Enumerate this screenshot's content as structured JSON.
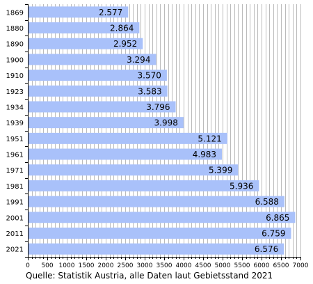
{
  "chart_data": {
    "type": "bar",
    "orientation": "horizontal",
    "categories": [
      "1869",
      "1880",
      "1890",
      "1900",
      "1910",
      "1923",
      "1934",
      "1939",
      "1951",
      "1961",
      "1971",
      "1981",
      "1991",
      "2001",
      "2011",
      "2021"
    ],
    "values": [
      2577,
      2864,
      2952,
      3294,
      3570,
      3583,
      3796,
      3998,
      5121,
      4983,
      5399,
      5936,
      6588,
      6865,
      6759,
      6576
    ],
    "value_labels": [
      "2.577",
      "2.864",
      "2.952",
      "3.294",
      "3.570",
      "3.583",
      "3.796",
      "3.998",
      "5.121",
      "4.983",
      "5.399",
      "5.936",
      "6.588",
      "6.865",
      "6.759",
      "6.576"
    ],
    "xlim": [
      0,
      7000
    ],
    "x_ticks": [
      0,
      500,
      1000,
      1500,
      2000,
      2500,
      3000,
      3500,
      4000,
      4500,
      5000,
      5500,
      6000,
      6500,
      7000
    ],
    "minor_tick_step": 100,
    "grid": true,
    "bar_color": "#a9c1fa",
    "grid_color": "#bbbbbb",
    "caption": "Quelle: Statistik Austria, alle Daten laut Gebietsstand 2021"
  }
}
